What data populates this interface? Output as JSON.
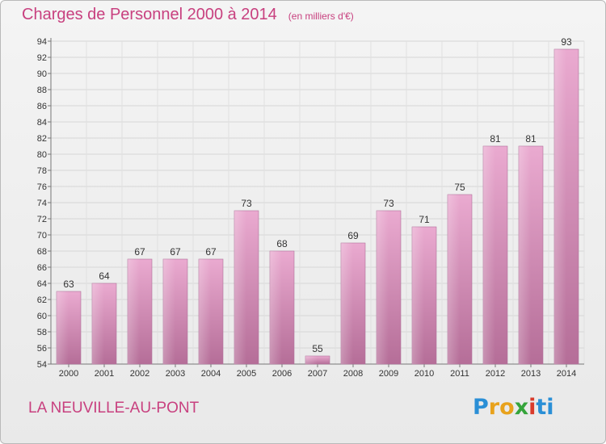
{
  "header": {
    "title": "Charges de Personnel 2000 à 2014",
    "subtitle": "(en milliers d'€)"
  },
  "footer": {
    "commune": "LA NEUVILLE-AU-PONT",
    "logo_letters": [
      "P",
      "r",
      "o",
      "x",
      "i",
      "t",
      "i"
    ],
    "logo_colors": [
      "#2a8fd6",
      "#e8a21c",
      "#e8a21c",
      "#35a43b",
      "#d93b2b",
      "#2a8fd6",
      "#2a8fd6"
    ]
  },
  "colors": {
    "accent": "#c8407f",
    "bar_light": "#eaaad0",
    "bar_dark": "#b56e98"
  },
  "chart_data": {
    "type": "bar",
    "title": "Charges de Personnel 2000 à 2014",
    "subtitle": "(en milliers d'€)",
    "categories": [
      "2000",
      "2001",
      "2002",
      "2003",
      "2004",
      "2005",
      "2006",
      "2007",
      "2008",
      "2009",
      "2010",
      "2011",
      "2012",
      "2013",
      "2014"
    ],
    "values": [
      63,
      64,
      67,
      67,
      67,
      73,
      68,
      55,
      69,
      73,
      71,
      75,
      81,
      81,
      93
    ],
    "ylim": [
      54,
      94
    ],
    "yticks": [
      54,
      56,
      58,
      60,
      62,
      64,
      66,
      68,
      70,
      72,
      74,
      76,
      78,
      80,
      82,
      84,
      86,
      88,
      90,
      92,
      94
    ],
    "grid": true,
    "data_labels": true
  }
}
